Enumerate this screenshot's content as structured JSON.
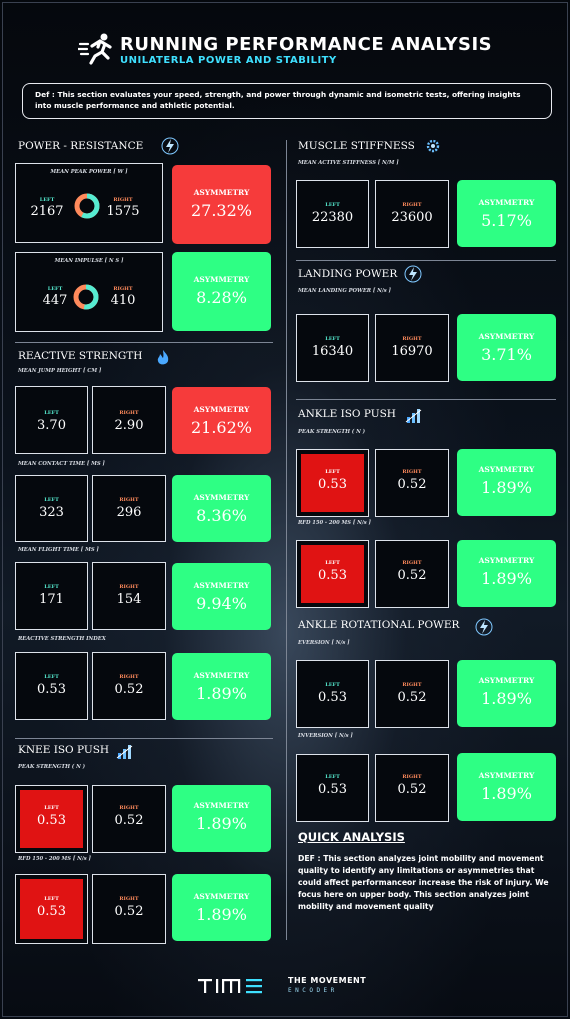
{
  "header": {
    "title": "RUNNING PERFORMANCE ANALYSIS",
    "subtitle": "UNILATERLA POWER AND STABILITY",
    "definition": "Def : This section evaluates your speed, strength, and power through dynamic and isometric tests, offering insights into muscle performance and athletic potential."
  },
  "labels": {
    "left": "LEFT",
    "right": "RIGHT",
    "asymmetry": "ASYMMETRY"
  },
  "colors": {
    "green": "#2eff84",
    "red": "#f63b3b",
    "flag": "#e01313",
    "left_accent": "#56ecd1",
    "right_accent": "#ff8a5c"
  },
  "power_resistance": {
    "title": "POWER - RESISTANCE",
    "icon": "lightning-icon",
    "peak_power": {
      "metric": "MEAN PEAK POWER [ W ]",
      "left": "2167",
      "right": "1575",
      "asymmetry": "27.32%",
      "status": "red"
    },
    "impulse": {
      "metric": "MEAN IMPULSE [ N S ]",
      "left": "447",
      "right": "410",
      "asymmetry": "8.28%",
      "status": "green"
    }
  },
  "reactive_strength": {
    "title": "REACTIVE STRENGTH",
    "icon": "flame-icon",
    "jump_height": {
      "metric": "MEAN JUMP HEIGHT [ CM ]",
      "left": "3.70",
      "right": "2.90",
      "asymmetry": "21.62%",
      "status": "red"
    },
    "contact_time": {
      "metric": "MEAN CONTACT TIME [ MS ]",
      "left": "323",
      "right": "296",
      "asymmetry": "8.36%",
      "status": "green"
    },
    "flight_time": {
      "metric": "MEAN FLIGHT TIME [ MS ]",
      "left": "171",
      "right": "154",
      "asymmetry": "9.94%",
      "status": "green"
    },
    "rsi": {
      "metric": "REACTIVE STRENGTH INDEX",
      "left": "0.53",
      "right": "0.52",
      "asymmetry": "1.89%",
      "status": "green"
    }
  },
  "knee_iso_push": {
    "title": "KNEE ISO PUSH",
    "icon": "bars-icon",
    "peak_strength": {
      "metric": "PEAK STRENGTH ( N )",
      "left": "0.53",
      "right": "0.52",
      "asymmetry": "1.89%",
      "status": "green"
    },
    "rfd": {
      "metric": "RFD 150 - 200 MS [ N/s ]",
      "left": "0.53",
      "right": "0.52",
      "asymmetry": "1.89%",
      "status": "green"
    }
  },
  "muscle_stiffness": {
    "title": "MUSCLE STIFFNESS",
    "icon": "gear-icon",
    "active_stiffness": {
      "metric": "MEAN ACTIVE STIFFNESS [ N/M ]",
      "left": "22380",
      "right": "23600",
      "asymmetry": "5.17%",
      "status": "green"
    }
  },
  "landing_power": {
    "title": "LANDING POWER",
    "icon": "lightning-icon",
    "landing": {
      "metric": "MEAN LANDING POWER [ N/s ]",
      "left": "16340",
      "right": "16970",
      "asymmetry": "3.71%",
      "status": "green"
    }
  },
  "ankle_iso_push": {
    "title": "ANKLE ISO PUSH",
    "icon": "bars-icon",
    "peak_strength": {
      "metric": "PEAK STRENGTH ( N )",
      "left": "0.53",
      "right": "0.52",
      "asymmetry": "1.89%",
      "status": "green"
    },
    "rfd": {
      "metric": "RFD 150 - 200 MS [ N/s ]",
      "left": "0.53",
      "right": "0.52",
      "asymmetry": "1.89%",
      "status": "green"
    }
  },
  "ankle_rotational_power": {
    "title": "ANKLE ROTATIONAL POWER",
    "icon": "lightning-icon",
    "eversion": {
      "metric": "EVERSION [ N/s ]",
      "left": "0.53",
      "right": "0.52",
      "asymmetry": "1.89%",
      "status": "green"
    },
    "inversion": {
      "metric": "INVERSION [ N/s ]",
      "left": "0.53",
      "right": "0.52",
      "asymmetry": "1.89%",
      "status": "green"
    }
  },
  "quick_analysis": {
    "title": "QUICK ANALYSIS",
    "text": "DEF : This section analyzes joint mobility and movement quality to identify any limitations or asymmetries that could affect performanceor increase the risk of injury. We focus here on upper body. This section analyzes joint mobility and movement quality"
  },
  "footer": {
    "brand_line1": "THE MOVEMENT",
    "brand_line2": "ENCODER"
  }
}
